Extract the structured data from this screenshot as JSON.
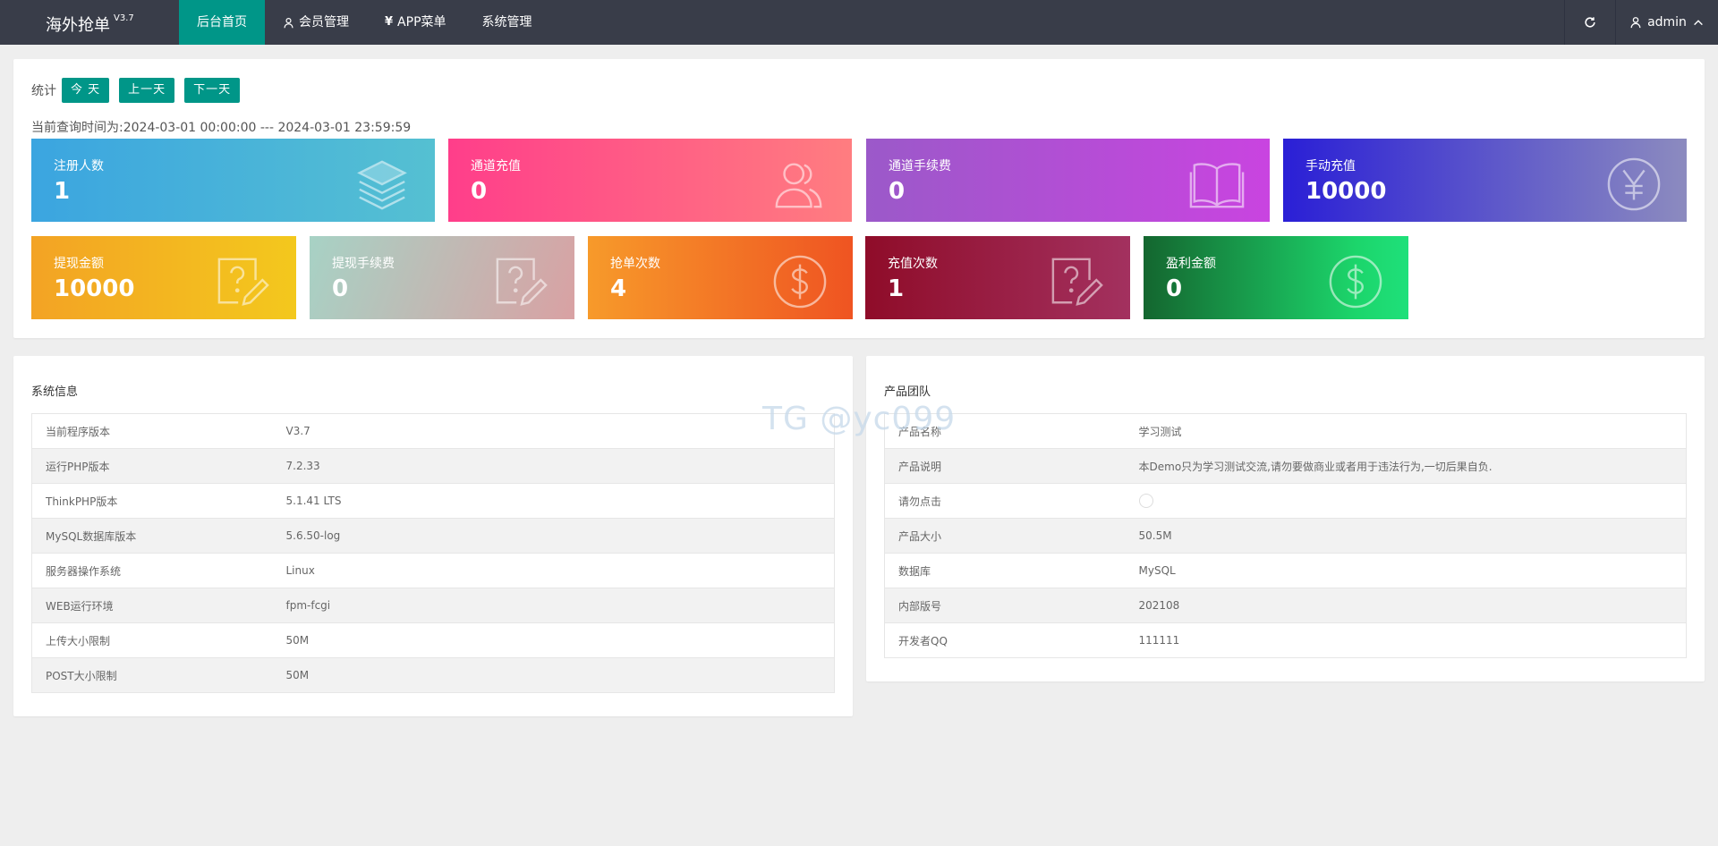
{
  "app": {
    "name": "海外抢单",
    "version": "V3.7"
  },
  "nav": [
    {
      "label": "后台首页",
      "icon": "",
      "active": true
    },
    {
      "label": "会员管理",
      "icon": "user-icon"
    },
    {
      "label": "APP菜单",
      "icon": "yen-icon"
    },
    {
      "label": "系统管理",
      "icon": ""
    }
  ],
  "topright": {
    "refresh_icon": "refresh-icon",
    "user": "admin",
    "user_icon": "user-icon",
    "caret_icon": "chevron-up-icon"
  },
  "stats": {
    "label": "统计",
    "buttons": [
      "今 天",
      "上一天",
      "下一天"
    ],
    "query_time": "当前查询时间为:2024-03-01 00:00:00 --- 2024-03-01 23:59:59",
    "cards": [
      {
        "label": "注册人数",
        "value": "1",
        "icon": "layers-icon"
      },
      {
        "label": "通道充值",
        "value": "0",
        "icon": "users-icon"
      },
      {
        "label": "通道手续费",
        "value": "0",
        "icon": "book-icon"
      },
      {
        "label": "手动充值",
        "value": "10000",
        "icon": "yen-circle-icon"
      },
      {
        "label": "提现金额",
        "value": "10000",
        "icon": "question-edit-icon"
      },
      {
        "label": "提现手续费",
        "value": "0",
        "icon": "question-edit-icon"
      },
      {
        "label": "抢单次数",
        "value": "4",
        "icon": "dollar-circle-icon"
      },
      {
        "label": "充值次数",
        "value": "1",
        "icon": "question-edit-icon"
      },
      {
        "label": "盈利金额",
        "value": "0",
        "icon": "dollar-circle-icon"
      }
    ]
  },
  "system_info": {
    "title": "系统信息",
    "rows": [
      [
        "当前程序版本",
        "V3.7"
      ],
      [
        "运行PHP版本",
        "7.2.33"
      ],
      [
        "ThinkPHP版本",
        "5.1.41 LTS"
      ],
      [
        "MySQL数据库版本",
        "5.6.50-log"
      ],
      [
        "服务器操作系统",
        "Linux"
      ],
      [
        "WEB运行环境",
        "fpm-fcgi"
      ],
      [
        "上传大小限制",
        "50M"
      ],
      [
        "POST大小限制",
        "50M"
      ]
    ]
  },
  "product_team": {
    "title": "产品团队",
    "rows": [
      [
        "产品名称",
        "学习测试"
      ],
      [
        "产品说明",
        "本Demo只为学习测试交流,请勿要做商业或者用于违法行为,一切后果自负."
      ],
      [
        "请勿点击",
        ""
      ],
      [
        "产品大小",
        "50.5M"
      ],
      [
        "数据库",
        "MySQL"
      ],
      [
        "内部版号",
        "202108"
      ],
      [
        "开发者QQ",
        "111111"
      ]
    ]
  },
  "watermark": "TG @yc099",
  "colors": {
    "topbar": "#393d49",
    "accent": "#009688"
  }
}
